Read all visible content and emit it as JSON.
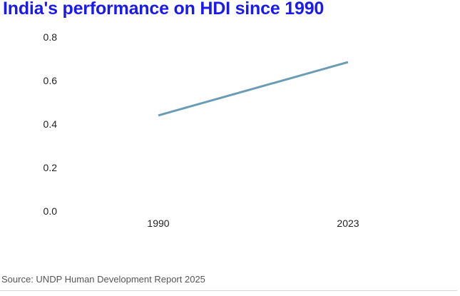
{
  "chart_data": {
    "type": "line",
    "title": "India's performance on HDI since 1990",
    "xlabel": "",
    "ylabel": "",
    "categories": [
      "1990",
      "2023"
    ],
    "series": [
      {
        "values": [
          0.44,
          0.685
        ]
      }
    ],
    "ylim": [
      0,
      0.8
    ],
    "yticks": [
      "0.0",
      "0.2",
      "0.4",
      "0.6",
      "0.8"
    ],
    "grid": false,
    "legend": "none",
    "line_color": "#6a9db4"
  },
  "source": "Source: UNDP Human Development Report 2025",
  "colors": {
    "title": "#1a1aee",
    "source_rule": "#d6d6d6"
  }
}
